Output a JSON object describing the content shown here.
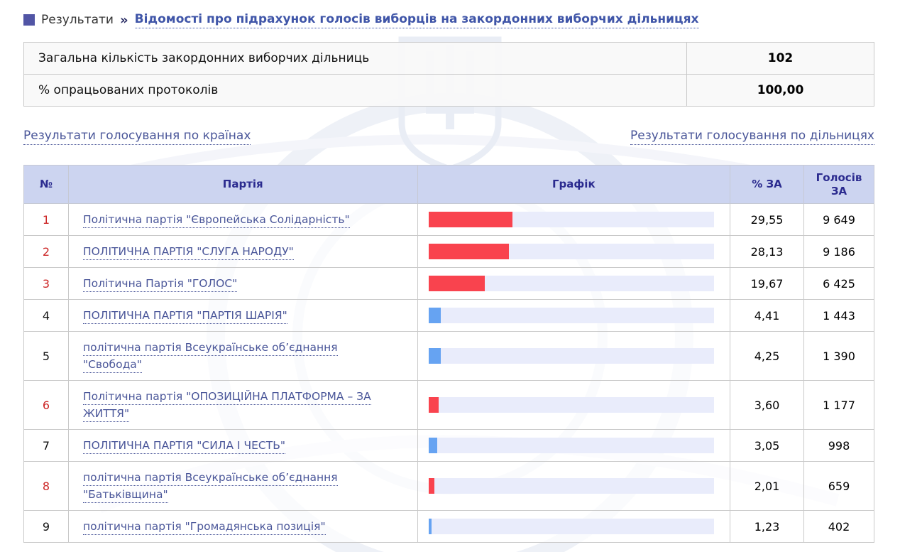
{
  "breadcrumb": {
    "section": "Результати",
    "separator": "»",
    "title": "Відомості про підрахунок голосів виборців на закордонних виборчих дільницях"
  },
  "summary": {
    "rows": [
      {
        "label": "Загальна кількість закордонних виборчих дільниць",
        "value": "102"
      },
      {
        "label": "% опрацьованих протоколів",
        "value": "100,00"
      }
    ]
  },
  "links": {
    "left": "Результати голосування по країнах",
    "right": "Результати голосування по дільницях"
  },
  "table": {
    "headers": {
      "num": "№",
      "party": "Партія",
      "chart": "Графік",
      "percent": "% ЗА",
      "votes": "Голосів ЗА"
    },
    "rows": [
      {
        "num": "1",
        "num_highlight": true,
        "party": "Політична партія \"Європейська Солідарність\"",
        "percent": "29,55",
        "votes": "9 649",
        "bar_value": 29.55,
        "bar_color": "red"
      },
      {
        "num": "2",
        "num_highlight": true,
        "party": "ПОЛІТИЧНА ПАРТІЯ \"СЛУГА НАРОДУ\"",
        "percent": "28,13",
        "votes": "9 186",
        "bar_value": 28.13,
        "bar_color": "red"
      },
      {
        "num": "3",
        "num_highlight": true,
        "party": "Політична Партія \"ГОЛОС\"",
        "percent": "19,67",
        "votes": "6 425",
        "bar_value": 19.67,
        "bar_color": "red"
      },
      {
        "num": "4",
        "num_highlight": false,
        "party": "ПОЛІТИЧНА ПАРТІЯ \"ПАРТІЯ ШАРІЯ\"",
        "percent": "4,41",
        "votes": "1 443",
        "bar_value": 4.41,
        "bar_color": "blue"
      },
      {
        "num": "5",
        "num_highlight": false,
        "party": "політична партія Всеукраїнське об’єднання \"Свобода\"",
        "percent": "4,25",
        "votes": "1 390",
        "bar_value": 4.25,
        "bar_color": "blue"
      },
      {
        "num": "6",
        "num_highlight": true,
        "party": "Політична партія \"ОПОЗИЦІЙНА ПЛАТФОРМА – ЗА ЖИТТЯ\"",
        "percent": "3,60",
        "votes": "1 177",
        "bar_value": 3.6,
        "bar_color": "red"
      },
      {
        "num": "7",
        "num_highlight": false,
        "party": "ПОЛІТИЧНА ПАРТІЯ \"СИЛА І ЧЕСТЬ\"",
        "percent": "3,05",
        "votes": "998",
        "bar_value": 3.05,
        "bar_color": "blue"
      },
      {
        "num": "8",
        "num_highlight": true,
        "party": "політична партія Всеукраїнське об’єднання \"Батьківщина\"",
        "percent": "2,01",
        "votes": "659",
        "bar_value": 2.01,
        "bar_color": "red"
      },
      {
        "num": "9",
        "num_highlight": false,
        "party": "політична партія \"Громадянська позиція\"",
        "percent": "1,23",
        "votes": "402",
        "bar_value": 1.23,
        "bar_color": "blue"
      }
    ]
  },
  "colors": {
    "accent_bullet": "#5155a5",
    "title_link": "#3f55a8",
    "body_link": "#4a5699",
    "header_bg": "#ccd4f0",
    "header_text": "#2b2b8f",
    "highlight_number": "#cc2626",
    "bar_red": "#f9434e",
    "bar_blue": "#66a3f2",
    "bar_track": "#e9ecfb"
  },
  "chart_data": {
    "type": "bar",
    "orientation": "horizontal",
    "title": "Графік",
    "categories": [
      "Політична партія \"Європейська Солідарність\"",
      "ПОЛІТИЧНА ПАРТІЯ \"СЛУГА НАРОДУ\"",
      "Політична Партія \"ГОЛОС\"",
      "ПОЛІТИЧНА ПАРТІЯ \"ПАРТІЯ ШАРІЯ\"",
      "політична партія Всеукраїнське об’єднання \"Свобода\"",
      "Політична партія \"ОПОЗИЦІЙНА ПЛАТФОРМА – ЗА ЖИТТЯ\"",
      "ПОЛІТИЧНА ПАРТІЯ \"СИЛА І ЧЕСТЬ\"",
      "політична партія Всеукраїнське об’єднання \"Батьківщина\"",
      "політична партія \"Громадянська позиція\""
    ],
    "series": [
      {
        "name": "% ЗА",
        "values": [
          29.55,
          28.13,
          19.67,
          4.41,
          4.25,
          3.6,
          3.05,
          2.01,
          1.23
        ]
      },
      {
        "name": "Голосів ЗА",
        "values": [
          9649,
          9186,
          6425,
          1443,
          1390,
          1177,
          998,
          659,
          402
        ]
      }
    ],
    "xlim": [
      0,
      100
    ],
    "bar_colors": [
      "red",
      "red",
      "red",
      "blue",
      "blue",
      "red",
      "blue",
      "red",
      "blue"
    ],
    "legend_position": "none",
    "grid": false
  }
}
